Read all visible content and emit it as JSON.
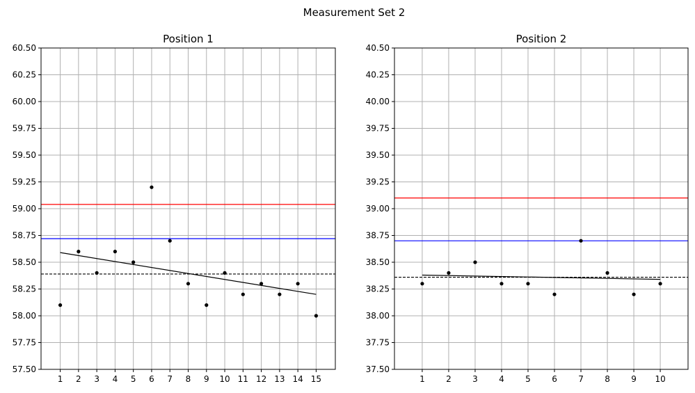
{
  "suptitle": "Measurement Set 2",
  "chart_data": [
    {
      "type": "scatter",
      "title": "Position 1",
      "xlabel": "",
      "ylabel": "",
      "x": [
        1,
        2,
        3,
        4,
        5,
        6,
        7,
        8,
        9,
        10,
        11,
        12,
        13,
        14,
        15
      ],
      "y": [
        58.1,
        58.6,
        58.4,
        58.6,
        58.5,
        59.2,
        58.7,
        58.3,
        58.1,
        58.4,
        58.2,
        58.3,
        58.2,
        58.3,
        58.0
      ],
      "xticks": [
        1,
        2,
        3,
        4,
        5,
        6,
        7,
        8,
        9,
        10,
        11,
        12,
        13,
        14,
        15
      ],
      "xlim": [
        -0.05,
        16.05
      ],
      "ylim": [
        57.5,
        60.5
      ],
      "yticks": [
        "57.50",
        "57.75",
        "58.00",
        "58.25",
        "58.50",
        "58.75",
        "59.00",
        "59.25",
        "59.50",
        "59.75",
        "60.00",
        "60.25",
        "60.50"
      ],
      "grid": true,
      "point_color": "#000000",
      "hlines": [
        {
          "y": 59.04,
          "color": "#ff0000",
          "style": "solid"
        },
        {
          "y": 58.72,
          "color": "#0000ff",
          "style": "solid"
        },
        {
          "y": 58.39,
          "color": "#000000",
          "style": "dashed"
        }
      ],
      "trend": {
        "x1": 1,
        "y1": 58.59,
        "x2": 15,
        "y2": 58.2,
        "color": "#000000"
      }
    },
    {
      "type": "scatter",
      "title": "Position 2",
      "xlabel": "",
      "ylabel": "",
      "x": [
        1,
        2,
        3,
        4,
        5,
        6,
        7,
        8,
        9,
        10
      ],
      "y": [
        38.3,
        38.4,
        38.5,
        38.3,
        38.3,
        38.2,
        38.7,
        38.4,
        38.2,
        38.3
      ],
      "xticks": [
        1,
        2,
        3,
        4,
        5,
        6,
        7,
        8,
        9,
        10
      ],
      "xlim": [
        -0.05,
        11.05
      ],
      "ylim": [
        37.5,
        40.5
      ],
      "yticks": [
        "37.50",
        "37.75",
        "38.00",
        "38.25",
        "38.50",
        "38.75",
        "39.00",
        "39.25",
        "39.50",
        "39.75",
        "40.00",
        "40.25",
        "40.50"
      ],
      "grid": true,
      "point_color": "#000000",
      "hlines": [
        {
          "y": 39.1,
          "color": "#ff0000",
          "style": "solid"
        },
        {
          "y": 38.7,
          "color": "#0000ff",
          "style": "solid"
        },
        {
          "y": 38.36,
          "color": "#000000",
          "style": "dashed"
        }
      ],
      "trend": {
        "x1": 1,
        "y1": 38.38,
        "x2": 10,
        "y2": 38.34,
        "color": "#000000"
      }
    }
  ]
}
